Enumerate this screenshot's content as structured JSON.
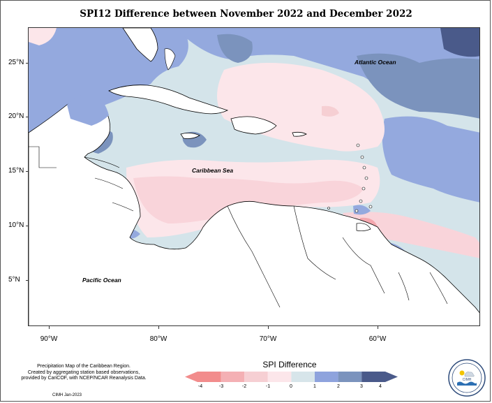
{
  "title": "SPI12 Difference between November 2022 and December 2022",
  "latitudes": [
    "25°N",
    "20°N",
    "15°N",
    "10°N",
    "5°N"
  ],
  "longitudes": [
    "90°W",
    "80°W",
    "70°W",
    "60°W"
  ],
  "labels": {
    "atlantic": "Atlantic Ocean",
    "caribbean": "Caribbean Sea",
    "pacific": "Pacific Ocean"
  },
  "legend": {
    "title": "SPI Difference",
    "ticks": [
      "-4",
      "-3",
      "-2",
      "-1",
      "0",
      "1",
      "2",
      "3",
      "4"
    ],
    "colors": [
      "#f28c8c",
      "#f4b0b4",
      "#f6cfd3",
      "#fce6ea",
      "#d7e5ea",
      "#8ea3dd",
      "#7b93bd",
      "#4a5a8a"
    ]
  },
  "credits": {
    "line1": "Precipitation Map of the Caribbean Region.",
    "line2": "Created by aggregating station based observations,",
    "line3": "provided by CariCOF, with NCEP/NCAR Reanalysis Data.",
    "date": "CIMH Jan-2023"
  },
  "logo": {
    "text": "CIMH",
    "icon": "cimh-sun-cloud-wave-icon"
  }
}
